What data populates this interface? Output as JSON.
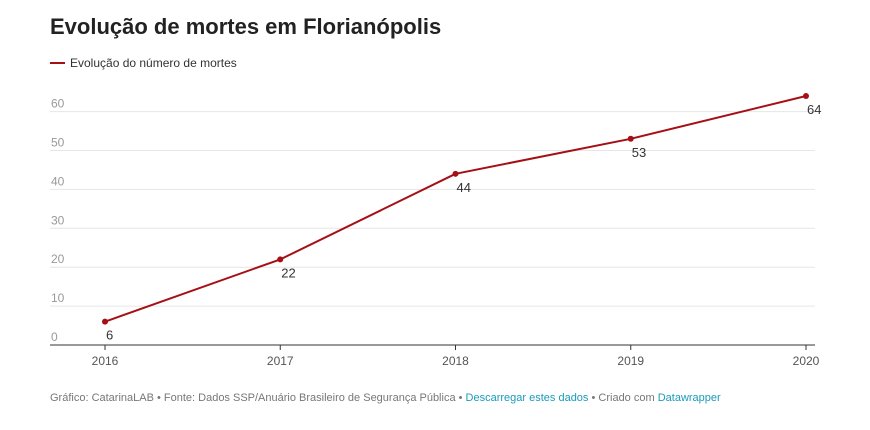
{
  "title": "Evolução de mortes em Florianópolis",
  "legend": {
    "label": "Evolução do número de mortes",
    "color": "#a50f15"
  },
  "chart_data": {
    "type": "line",
    "title": "Evolução de mortes em Florianópolis",
    "x": [
      "2016",
      "2017",
      "2018",
      "2019",
      "2020"
    ],
    "series": [
      {
        "name": "Evolução do número de mortes",
        "values": [
          6,
          22,
          44,
          53,
          64
        ],
        "color": "#a50f15"
      }
    ],
    "yticks": [
      0,
      10,
      20,
      30,
      40,
      50,
      60
    ],
    "ylim": [
      0,
      64
    ],
    "grid": true,
    "legend_position": "top-left",
    "xlabel": "",
    "ylabel": ""
  },
  "footer": {
    "source": "Gráfico: CatarinaLAB • Fonte: Dados SSP/Anuário Brasileiro de Segurança Pública • ",
    "download_link": "Descarregar estes dados",
    "created": " • Criado com ",
    "tool_link": "Datawrapper"
  },
  "colors": {
    "line": "#a50f15",
    "grid": "#e6e6e6",
    "axis": "#333333",
    "tick_text": "#999999",
    "link": "#1a9bba"
  }
}
